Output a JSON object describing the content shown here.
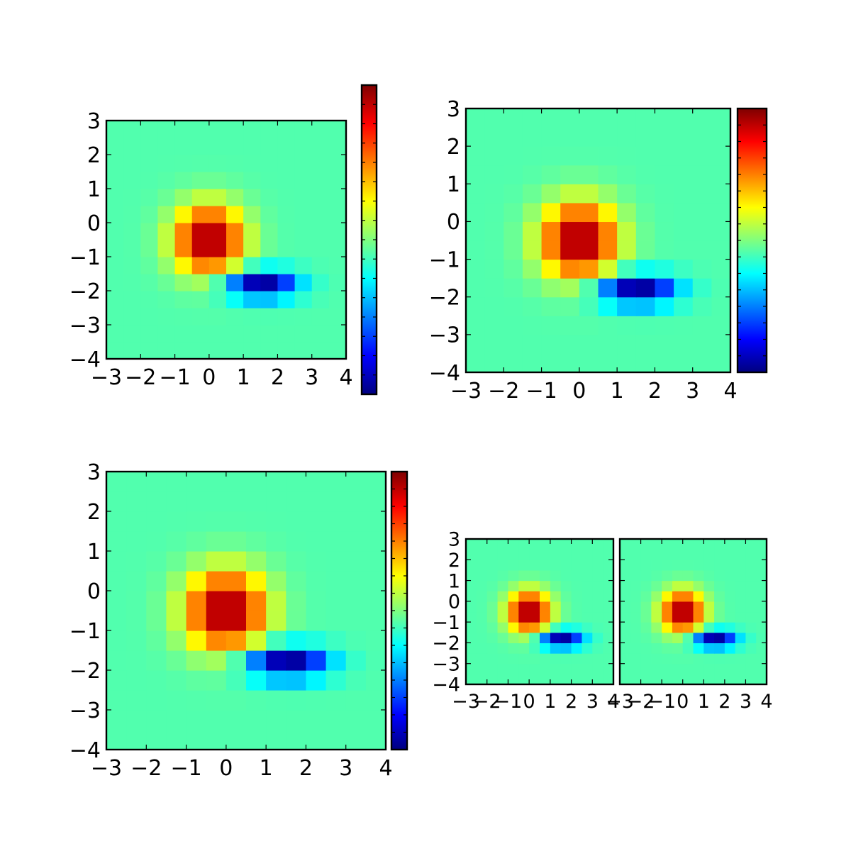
{
  "figure": {
    "background": "#ffffff",
    "layout": "2x2 grid of heatmap panels; bottom-right cell holds two side-by-side panels"
  },
  "colors": {
    "colormap": "jet",
    "colormap_stops": [
      "#00007f",
      "#0000ff",
      "#007fff",
      "#00ffff",
      "#7fff7f",
      "#ffff00",
      "#ff7f00",
      "#ff0000",
      "#7f0000"
    ],
    "axis_color": "#000000"
  },
  "chart_data": [
    {
      "type": "heatmap",
      "panel": "top-left",
      "colorbar": true,
      "colorbar_position": "right, taller than axes",
      "xlim": [
        -3,
        4
      ],
      "ylim": [
        -4,
        3
      ],
      "xticks": [
        "−3",
        "−2",
        "−1",
        "0",
        "1",
        "2",
        "3",
        "4"
      ],
      "yticks": [
        "3",
        "2",
        "1",
        "0",
        "−1",
        "−2",
        "−3",
        "−4"
      ],
      "colormap": "jet",
      "cmap_range": [
        -1,
        1.2
      ],
      "grid": {
        "nx": 14,
        "ny": 14,
        "x0": -3,
        "x1": 4,
        "y0": -4,
        "y1": 3
      },
      "field": {
        "description": "difference of two Gaussians on a 14x14 cell grid",
        "peak": {
          "x": 0,
          "y": -0.5,
          "value": 1.2
        },
        "trough": {
          "x": 1.5,
          "y": -1.8,
          "value": -1.0
        }
      }
    },
    {
      "type": "heatmap",
      "panel": "top-right",
      "colorbar": true,
      "colorbar_position": "right, same height as axes",
      "xlim": [
        -3,
        4
      ],
      "ylim": [
        -4,
        3
      ],
      "xticks": [
        "−3",
        "−2",
        "−1",
        "0",
        "1",
        "2",
        "3",
        "4"
      ],
      "yticks": [
        "3",
        "2",
        "1",
        "0",
        "−1",
        "−2",
        "−3",
        "−4"
      ],
      "colormap": "jet",
      "cmap_range": [
        -1,
        1.2
      ]
    },
    {
      "type": "heatmap",
      "panel": "bottom-left",
      "colorbar": true,
      "colorbar_position": "right, same height as axes",
      "xlim": [
        -3,
        4
      ],
      "ylim": [
        -4,
        3
      ],
      "xticks": [
        "−3",
        "−2",
        "−1",
        "0",
        "1",
        "2",
        "3",
        "4"
      ],
      "yticks": [
        "3",
        "2",
        "1",
        "0",
        "−1",
        "−2",
        "−3",
        "−4"
      ],
      "colormap": "jet",
      "cmap_range": [
        -1,
        1.2
      ]
    },
    {
      "type": "heatmap",
      "panel": "bottom-right-a",
      "colorbar": false,
      "xlim": [
        -3,
        4
      ],
      "ylim": [
        -4,
        3
      ],
      "xticks": [
        "−3",
        "−2",
        "−1",
        "0",
        "1",
        "2",
        "3",
        "4"
      ],
      "yticks": [
        "3",
        "2",
        "1",
        "0",
        "−1",
        "−2",
        "−3",
        "−4"
      ],
      "colormap": "jet",
      "cmap_range": [
        -1,
        1.2
      ]
    },
    {
      "type": "heatmap",
      "panel": "bottom-right-b",
      "colorbar": false,
      "xlim": [
        -3,
        4
      ],
      "ylim": [
        -4,
        3
      ],
      "xticks": [
        "−3",
        "−2",
        "−1",
        "0",
        "1",
        "2",
        "3",
        "4"
      ],
      "yticks": [],
      "colormap": "jet",
      "cmap_range": [
        -1,
        1.2
      ]
    }
  ]
}
